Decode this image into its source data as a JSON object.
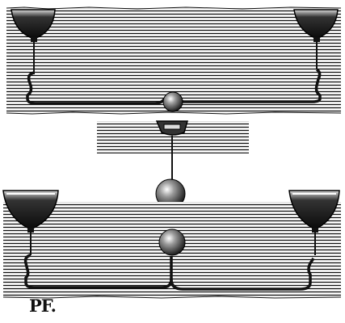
{
  "figure": {
    "signature": "PF.",
    "ink_color": "#111111",
    "paper_color": "#ffffff"
  }
}
